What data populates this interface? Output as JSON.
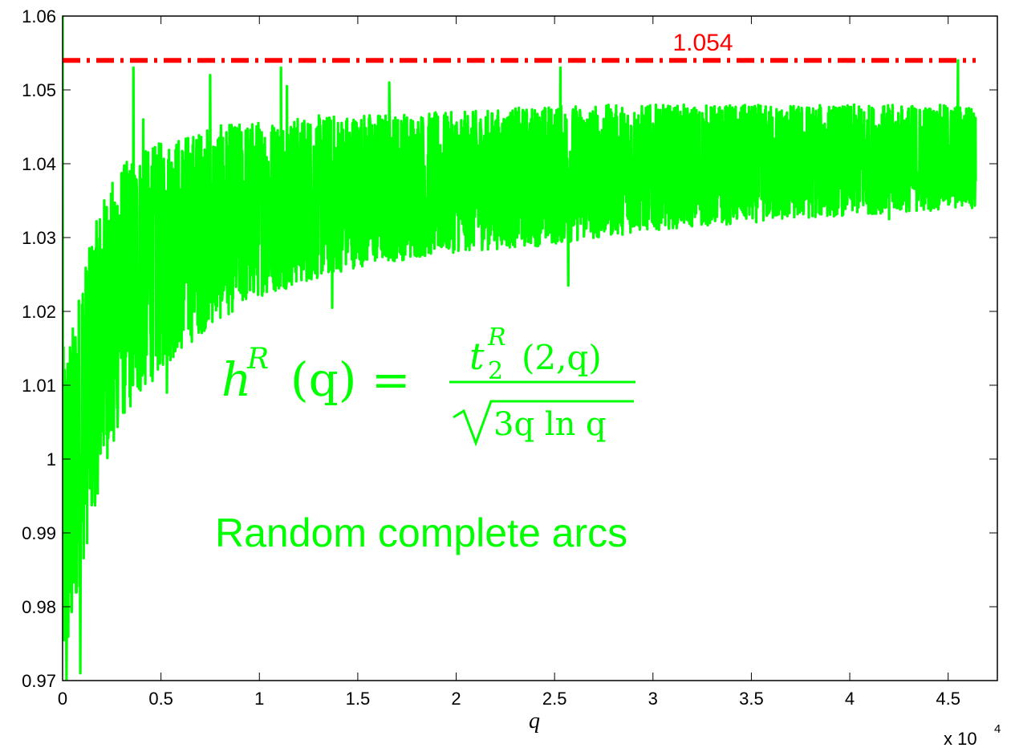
{
  "chart_data": {
    "type": "line",
    "xlabel": "q",
    "x_multiplier": "x 10",
    "x_multiplier_exp": "4",
    "xlim": [
      0,
      4.75
    ],
    "ylim": [
      0.97,
      1.06
    ],
    "grid": false,
    "x_ticks": [
      "0",
      "0.5",
      "1",
      "1.5",
      "2",
      "2.5",
      "3",
      "3.5",
      "4",
      "4.5"
    ],
    "y_ticks": [
      "0.97",
      "0.98",
      "0.99",
      "1",
      "1.01",
      "1.02",
      "1.03",
      "1.04",
      "1.05",
      "1.06"
    ],
    "reference_line": {
      "y": 1.054,
      "label": "1.054",
      "style": "dash-dot",
      "color": "#ff0000",
      "x_range": [
        0,
        4.64
      ]
    },
    "series": [
      {
        "color": "#00ff00",
        "x_range": [
          0,
          4.64
        ],
        "envelope": {
          "x": [
            0.0,
            0.05,
            0.1,
            0.2,
            0.3,
            0.5,
            0.75,
            1.0,
            1.5,
            2.0,
            2.5,
            3.0,
            3.5,
            4.0,
            4.64
          ],
          "low": [
            0.97,
            0.975,
            0.985,
            0.998,
            1.005,
            1.012,
            1.018,
            1.022,
            1.026,
            1.028,
            1.029,
            1.031,
            1.032,
            1.033,
            1.034
          ],
          "high": [
            1.015,
            1.018,
            1.025,
            1.035,
            1.04,
            1.043,
            1.045,
            1.046,
            1.047,
            1.047,
            1.048,
            1.048,
            1.048,
            1.048,
            1.048
          ],
          "mean": [
            0.99,
            0.998,
            1.01,
            1.02,
            1.025,
            1.029,
            1.031,
            1.033,
            1.035,
            1.037,
            1.038,
            1.039,
            1.039,
            1.04,
            1.04
          ]
        },
        "peaks": [
          [
            0.36,
            1.053
          ],
          [
            0.75,
            1.052
          ],
          [
            1.11,
            1.053
          ],
          [
            2.53,
            1.053
          ],
          [
            4.55,
            1.054
          ],
          [
            0.41,
            1.046
          ],
          [
            1.66,
            1.051
          ],
          [
            1.14,
            1.0505
          ]
        ],
        "troughs": [
          [
            0.09,
            0.971
          ],
          [
            0.02,
            0.97
          ],
          [
            0.53,
            1.009
          ],
          [
            2.57,
            1.0235
          ],
          [
            1.37,
            1.0205
          ],
          [
            0.26,
            1.0025
          ],
          [
            4.2,
            1.0325
          ]
        ]
      }
    ]
  },
  "annotations": {
    "formula_lhs": "h",
    "formula_sup": "R",
    "formula_arg": "(q) =",
    "formula_num": "t",
    "formula_num_sup": "R",
    "formula_num_sub": "2",
    "formula_num_arg": "(2,q)",
    "formula_den": "3q ln q",
    "caption": "Random complete arcs"
  },
  "colors": {
    "series": "#00ff00",
    "reference": "#ff0000",
    "axis": "#000000"
  }
}
